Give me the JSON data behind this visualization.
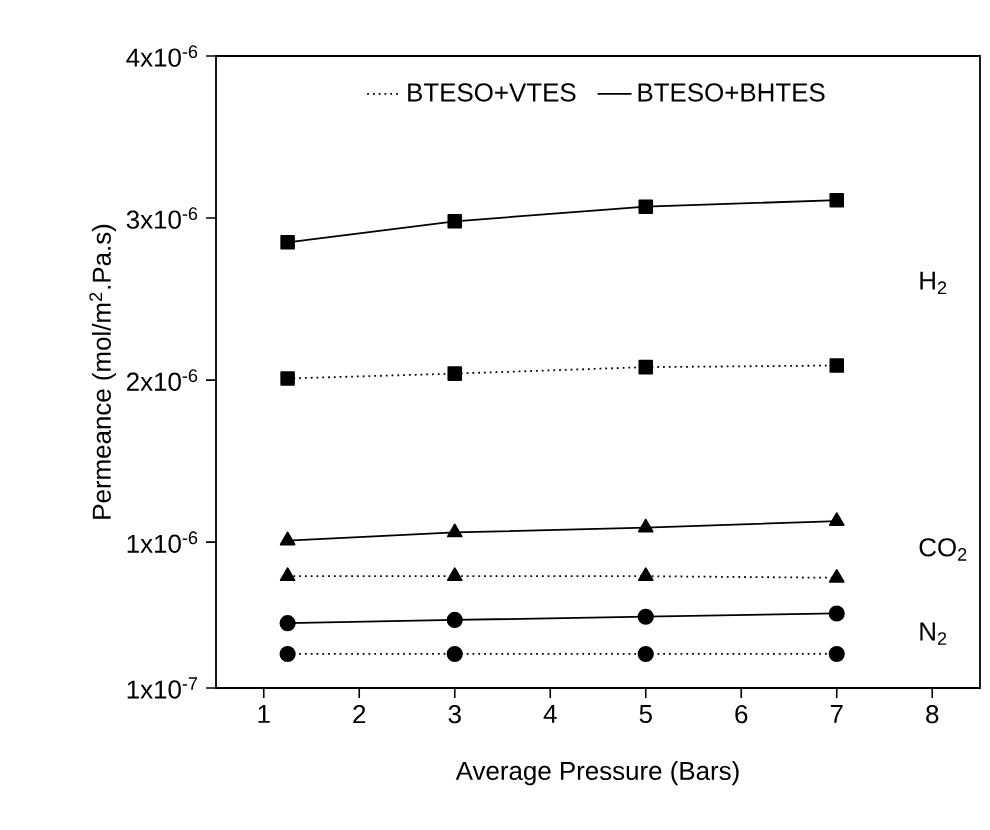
{
  "chart_data": {
    "type": "line",
    "xlabel": "Average Pressure (Bars)",
    "ylabel": "Permeance (mol/m$^{2}$.Pa.s)",
    "xlim": [
      0.5,
      8.5
    ],
    "xticks": [
      1,
      2,
      3,
      4,
      5,
      6,
      7,
      8
    ],
    "ylim": [
      1e-07,
      4e-06
    ],
    "yticks": [
      {
        "value": 1e-07,
        "label": "1x10$^{-7}$"
      },
      {
        "value": 1e-06,
        "label": "1x10$^{-6}$"
      },
      {
        "value": 2e-06,
        "label": "2x10$^{-6}$"
      },
      {
        "value": 3e-06,
        "label": "3x10$^{-6}$"
      },
      {
        "value": 4e-06,
        "label": "4x10$^{-6}$"
      }
    ],
    "x": [
      1.25,
      3,
      5,
      7
    ],
    "legend": "top",
    "grid": false,
    "series": [
      {
        "name": "BTESO+VTES",
        "color": "#000000",
        "marker": "square",
        "line_style": "dotted",
        "values": [
          2.01e-06,
          2.04e-06,
          2.08e-06,
          2.09e-06
        ]
      },
      {
        "name": "BTESO+BHTES",
        "color": "#000000",
        "marker": "square",
        "line_style": "solid",
        "values": [
          2.85e-06,
          2.98e-06,
          3.07e-06,
          3.11e-06
        ]
      },
      {
        "color": "#000000",
        "marker": "triangle",
        "line_style": "dotted",
        "values": [
          7.9e-07,
          7.9e-07,
          7.9e-07,
          7.8e-07
        ]
      },
      {
        "color": "#000000",
        "marker": "triangle",
        "line_style": "solid",
        "values": [
          1.01e-06,
          1.06e-06,
          1.09e-06,
          1.13e-06
        ]
      },
      {
        "color": "#000000",
        "marker": "circle",
        "line_style": "dotted",
        "values": [
          3.1e-07,
          3.1e-07,
          3.1e-07,
          3.1e-07
        ]
      },
      {
        "color": "#000000",
        "marker": "circle",
        "line_style": "solid",
        "values": [
          5e-07,
          5.2e-07,
          5.4e-07,
          5.6e-07
        ]
      }
    ],
    "annotations": [
      "H$_{2}$",
      "CO$_{2}$",
      "N$_{2}$"
    ]
  }
}
